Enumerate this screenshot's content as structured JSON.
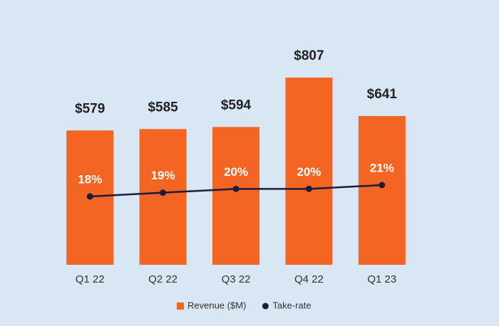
{
  "chart_data": {
    "type": "bar",
    "categories": [
      "Q1 22",
      "Q2 22",
      "Q3 22",
      "Q4 22",
      "Q1 23"
    ],
    "series": [
      {
        "name": "Revenue ($M)",
        "type": "bar",
        "color": "#f26522",
        "values": [
          579,
          585,
          594,
          807,
          641
        ],
        "value_labels": [
          "$579",
          "$585",
          "$594",
          "$807",
          "$641"
        ]
      },
      {
        "name": "Take-rate",
        "type": "line",
        "axis": "y2",
        "color": "#1c1c3c",
        "values": [
          18,
          19,
          20,
          20,
          21
        ],
        "value_labels": [
          "18%",
          "19%",
          "20%",
          "20%",
          "21%"
        ]
      }
    ],
    "ylim": [
      0,
      1080
    ],
    "y2lim": [
      0,
      66
    ],
    "legend": "bottom"
  }
}
